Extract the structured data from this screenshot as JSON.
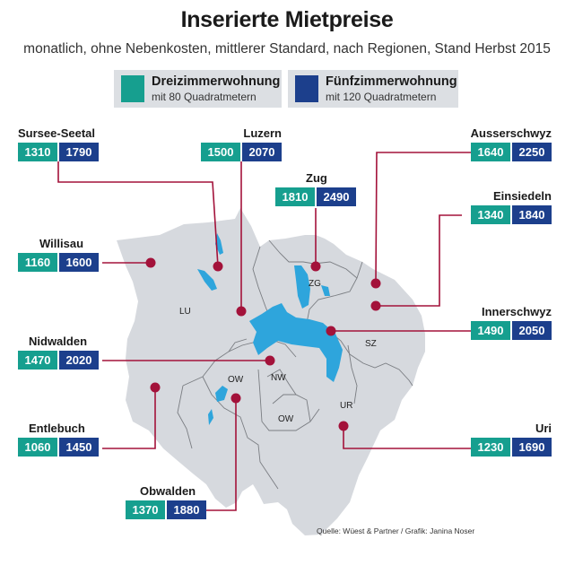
{
  "title": "Inserierte Mietpreise",
  "subtitle": "monatlich, ohne Nebenkosten, mittlerer Standard, nach Regionen, Stand Herbst 2015",
  "legend": {
    "three_room": {
      "title": "Dreizimmerwohnung",
      "sub": "mit 80 Quadratmetern",
      "color": "#169f8f"
    },
    "five_room": {
      "title": "Fünfzimmerwohnung",
      "sub": "mit 120 Quadratmetern",
      "color": "#1c3f8c"
    }
  },
  "regions": [
    {
      "name": "Sursee-Seetal",
      "three_room": "1310",
      "five_room": "1790"
    },
    {
      "name": "Luzern",
      "three_room": "1500",
      "five_room": "2070"
    },
    {
      "name": "Zug",
      "three_room": "1810",
      "five_room": "2490"
    },
    {
      "name": "Ausserschwyz",
      "three_room": "1640",
      "five_room": "2250"
    },
    {
      "name": "Einsiedeln",
      "three_room": "1340",
      "five_room": "1840"
    },
    {
      "name": "Willisau",
      "three_room": "1160",
      "five_room": "1600"
    },
    {
      "name": "Innerschwyz",
      "three_room": "1490",
      "five_room": "2050"
    },
    {
      "name": "Nidwalden",
      "three_room": "1470",
      "five_room": "2020"
    },
    {
      "name": "Entlebuch",
      "three_room": "1060",
      "five_room": "1450"
    },
    {
      "name": "Uri",
      "three_room": "1230",
      "five_room": "1690"
    },
    {
      "name": "Obwalden",
      "three_room": "1370",
      "five_room": "1880"
    }
  ],
  "map_labels": {
    "lu": "LU",
    "zg": "ZG",
    "sz": "SZ",
    "nw": "NW",
    "ow_west": "OW",
    "ow_east": "OW",
    "ur": "UR"
  },
  "colors": {
    "land": "#d6d9de",
    "lake": "#2ea5dc",
    "marker": "#a3123a",
    "border": "#7a7d82"
  },
  "source": "Quelle: Wüest & Partner / Grafik: Janina Noser"
}
